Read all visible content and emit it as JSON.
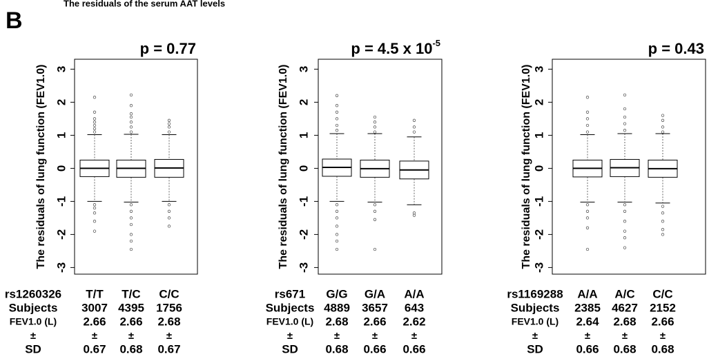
{
  "panel_label": "B",
  "heading": "The residuals of the serum AAT levels",
  "chart_data": [
    {
      "type": "boxplot",
      "title": "p = 0.77",
      "ylabel": "The residuals of lung function (FEV1.0)",
      "ylim": [
        -3.2,
        3.3
      ],
      "yticks": [
        -3,
        -2,
        -1,
        0,
        1,
        2,
        3
      ],
      "snp": "rs1260326",
      "categories": [
        "T/T",
        "T/C",
        "C/C"
      ],
      "boxes": [
        {
          "low": -1.0,
          "q1": -0.25,
          "median": 0,
          "q3": 0.25,
          "high": 1.02,
          "outliers": [
            1.1,
            1.2,
            1.3,
            1.4,
            1.5,
            1.7,
            2.15,
            -1.1,
            -1.2,
            -1.35,
            -1.6,
            -1.9
          ]
        },
        {
          "low": -1.02,
          "q1": -0.27,
          "median": 0,
          "q3": 0.25,
          "high": 1.03,
          "outliers": [
            1.1,
            1.25,
            1.4,
            1.55,
            1.65,
            1.9,
            2.22,
            -1.1,
            -1.3,
            -1.5,
            -1.7,
            -2.0,
            -2.2,
            -2.45
          ]
        },
        {
          "low": -1.0,
          "q1": -0.27,
          "median": 0.01,
          "q3": 0.27,
          "high": 1.02,
          "outliers": [
            1.1,
            1.25,
            1.35,
            1.45,
            -1.1,
            -1.3,
            -1.5,
            -1.75
          ]
        }
      ],
      "subjects_label": "Subjects",
      "subjects": [
        3007,
        4395,
        1756
      ],
      "fev_label": "FEV1.0 (L)",
      "fev_mean": [
        2.66,
        2.66,
        2.68
      ],
      "pm": "±",
      "sd_label": "SD",
      "sd": [
        0.67,
        0.68,
        0.67
      ]
    },
    {
      "type": "boxplot",
      "title": "p = 4.5 x 10",
      "title_superscript": "-5",
      "ylabel": "The residuals of lung function (FEV1.0)",
      "ylim": [
        -3.2,
        3.3
      ],
      "yticks": [
        -3,
        -2,
        -1,
        0,
        1,
        2,
        3
      ],
      "snp": "rs671",
      "categories": [
        "G/G",
        "G/A",
        "A/A"
      ],
      "boxes": [
        {
          "low": -1.0,
          "q1": -0.24,
          "median": 0.03,
          "q3": 0.28,
          "high": 1.05,
          "outliers": [
            1.15,
            1.3,
            1.5,
            1.7,
            1.9,
            2.2,
            -1.1,
            -1.3,
            -1.5,
            -1.75,
            -2.0,
            -2.2,
            -2.45
          ]
        },
        {
          "low": -1.02,
          "q1": -0.27,
          "median": -0.01,
          "q3": 0.25,
          "high": 1.05,
          "outliers": [
            1.1,
            1.25,
            1.4,
            1.55,
            -1.1,
            -1.3,
            -1.55,
            -2.45
          ]
        },
        {
          "low": -1.1,
          "q1": -0.32,
          "median": -0.05,
          "q3": 0.22,
          "high": 0.95,
          "outliers": [
            1.1,
            1.25,
            1.45,
            -1.35,
            -1.42
          ]
        }
      ],
      "subjects_label": "Subjects",
      "subjects": [
        4889,
        3657,
        643
      ],
      "fev_label": "FEV1.0 (L)",
      "fev_mean": [
        2.68,
        2.66,
        2.62
      ],
      "pm": "±",
      "sd_label": "SD",
      "sd": [
        0.68,
        0.66,
        0.66
      ]
    },
    {
      "type": "boxplot",
      "title": "p = 0.43",
      "ylabel": "The residuals of lung function (FEV1.0)",
      "ylim": [
        -3.2,
        3.3
      ],
      "yticks": [
        -3,
        -2,
        -1,
        0,
        1,
        2,
        3
      ],
      "snp": "rs1169288",
      "categories": [
        "A/A",
        "A/C",
        "C/C"
      ],
      "boxes": [
        {
          "low": -1.02,
          "q1": -0.26,
          "median": 0,
          "q3": 0.25,
          "high": 1.02,
          "outliers": [
            1.1,
            1.3,
            1.5,
            1.7,
            2.15,
            -1.1,
            -1.3,
            -1.5,
            -1.8,
            -2.45
          ]
        },
        {
          "low": -1.02,
          "q1": -0.25,
          "median": 0.02,
          "q3": 0.27,
          "high": 1.05,
          "outliers": [
            1.15,
            1.35,
            1.55,
            1.8,
            2.22,
            -1.1,
            -1.3,
            -1.6,
            -1.9,
            -2.1,
            -2.4
          ]
        },
        {
          "low": -1.05,
          "q1": -0.27,
          "median": -0.01,
          "q3": 0.25,
          "high": 1.05,
          "outliers": [
            1.1,
            1.25,
            1.45,
            1.6,
            -1.15,
            -1.35,
            -1.6,
            -1.85,
            -2.0
          ]
        }
      ],
      "subjects_label": "Subjects",
      "subjects": [
        2385,
        4627,
        2152
      ],
      "fev_label": "FEV1.0 (L)",
      "fev_mean": [
        2.64,
        2.68,
        2.66
      ],
      "pm": "±",
      "sd_label": "SD",
      "sd": [
        0.66,
        0.68,
        0.68
      ]
    }
  ]
}
